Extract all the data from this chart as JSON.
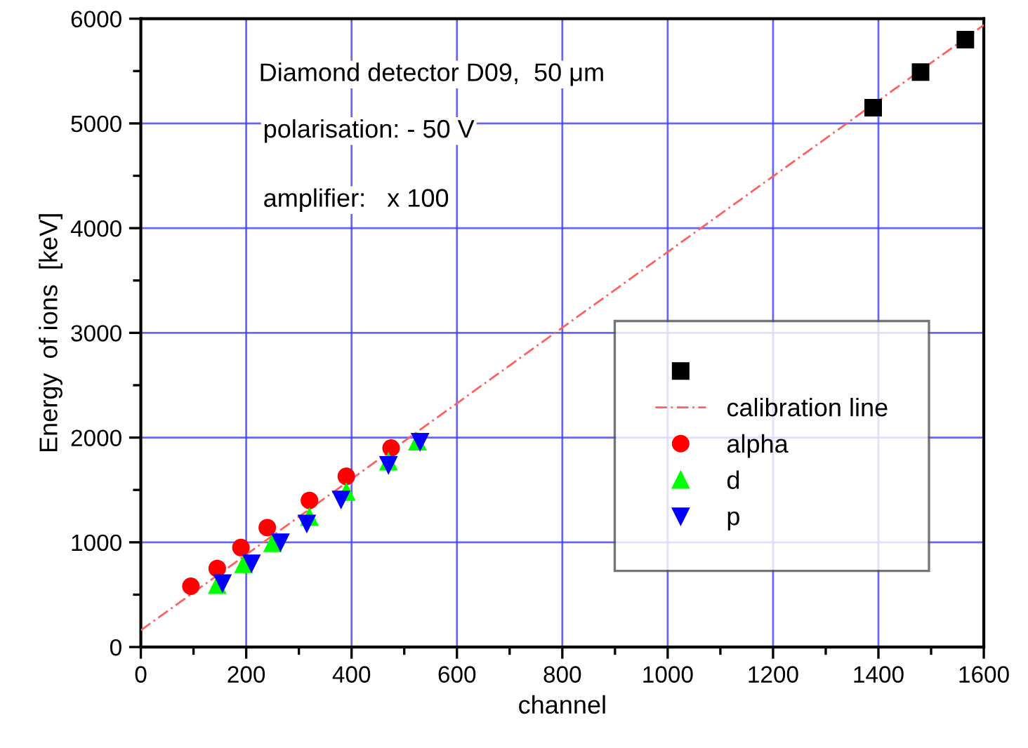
{
  "chart_data": {
    "type": "scatter",
    "xlabel": "channel",
    "ylabel": "Energy  of ions  [keV]",
    "xlim": [
      0,
      1600
    ],
    "ylim": [
      0,
      6000
    ],
    "xticks": [
      0,
      200,
      400,
      600,
      800,
      1000,
      1200,
      1400,
      1600
    ],
    "yticks": [
      0,
      1000,
      2000,
      3000,
      4000,
      5000,
      6000
    ],
    "grid": true,
    "legend": "right",
    "annotations": [
      "Diamond detector D09,  50 μm",
      "polarisation: - 50 V",
      "amplifier:   x 100"
    ],
    "series": [
      {
        "color": "#000000",
        "marker": "square",
        "x": [
          1390,
          1480,
          1565
        ],
        "values": [
          5150,
          5490,
          5800
        ]
      },
      {
        "name": "calibration line",
        "type": "line",
        "line_style": "dashed",
        "marker": "none",
        "color": "#ff6060",
        "x": [
          0,
          1600
        ],
        "values": [
          160,
          5940
        ]
      },
      {
        "name": "alpha",
        "color": "#ff0000",
        "marker": "circle",
        "x": [
          95,
          145,
          190,
          240,
          320,
          390,
          475
        ],
        "values": [
          580,
          750,
          950,
          1140,
          1400,
          1630,
          1900
        ]
      },
      {
        "name": "d",
        "color": "#00ff00",
        "marker": "triangle",
        "x": [
          145,
          195,
          250,
          320,
          390,
          470,
          525
        ],
        "values": [
          590,
          790,
          990,
          1240,
          1480,
          1770,
          1960
        ]
      },
      {
        "name": "p",
        "color": "#0000ff",
        "marker": "triangle_down",
        "x": [
          155,
          210,
          265,
          315,
          380,
          470,
          530
        ],
        "values": [
          610,
          800,
          1000,
          1180,
          1410,
          1740,
          1960
        ]
      }
    ]
  }
}
